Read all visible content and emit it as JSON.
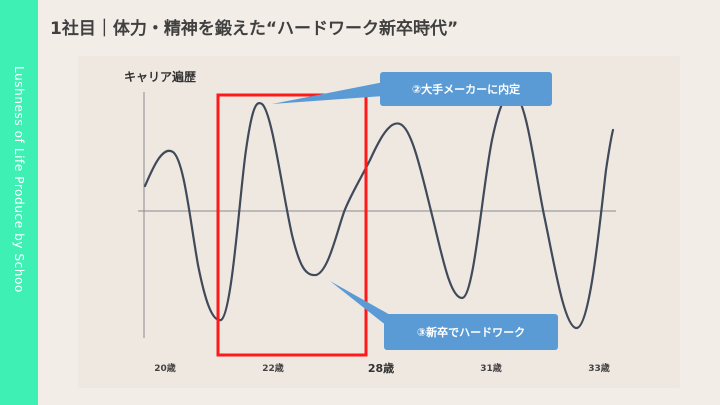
{
  "sidebar": {
    "text": "Lushness of Life Produce by Schoo"
  },
  "header": {
    "title": "1社目｜体力・精神を鍛えた“ハードワーク新卒時代”"
  },
  "chart": {
    "title": "キャリア遍歴",
    "callouts": [
      {
        "id": "c2",
        "label": "②大手メーカーに内定"
      },
      {
        "id": "c3",
        "label": "③新卒でハードワーク"
      }
    ],
    "ticks": [
      "20歳",
      "22歳",
      "28歳",
      "31歳",
      "33歳"
    ],
    "colors": {
      "line": "#404a5a",
      "highlight": "#ff1a1a",
      "callout": "#5b9bd5",
      "axis": "#8a8a8a"
    }
  }
}
